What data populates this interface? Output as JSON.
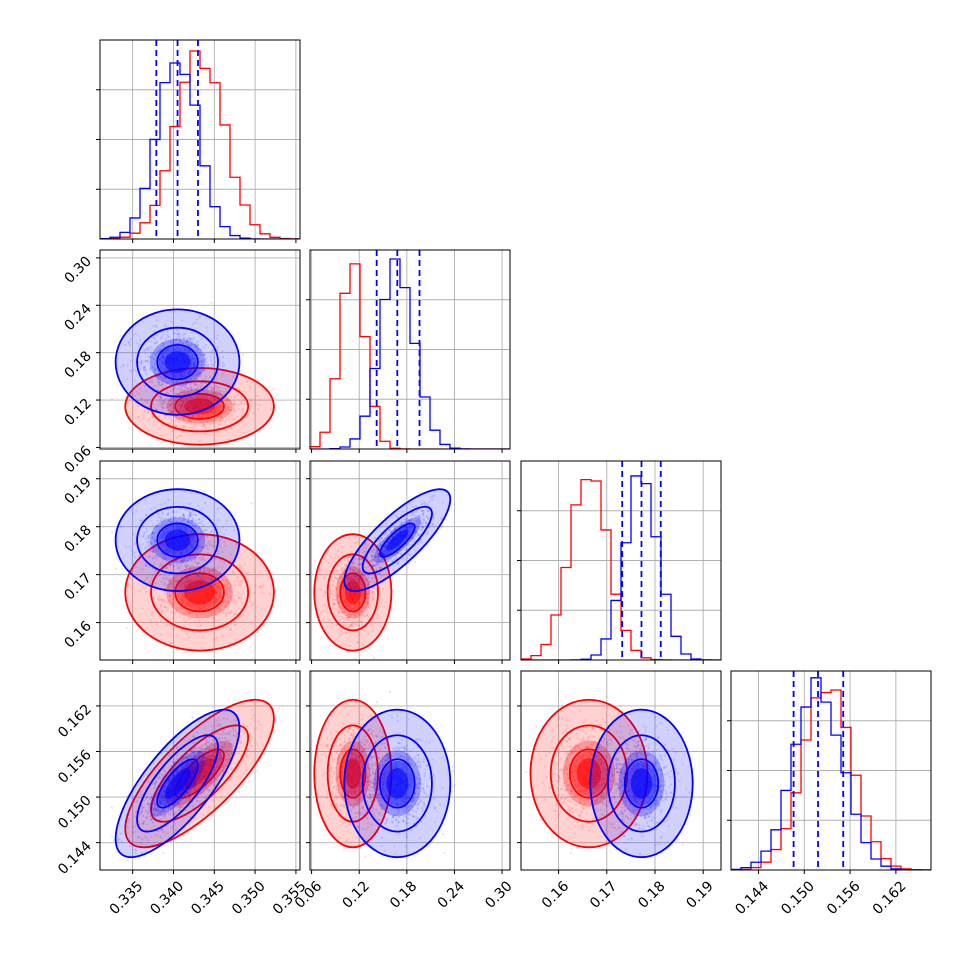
{
  "colors": {
    "series_a": "#ff0000",
    "series_b": "#0000ff",
    "grid": "#b0b0b0"
  },
  "chart_data": {
    "type": "scatter",
    "subtype": "corner plot",
    "title": "",
    "grid": true,
    "legend": "none",
    "parameters": [
      {
        "id": "p1",
        "range": [
          0.331,
          0.3555
        ],
        "ticks": [
          {
            "v": 0.335,
            "t": "0.335"
          },
          {
            "v": 0.34,
            "t": "0.340"
          },
          {
            "v": 0.345,
            "t": "0.345"
          },
          {
            "v": 0.35,
            "t": "0.350"
          },
          {
            "v": 0.355,
            "t": "0.355"
          }
        ],
        "hist_max": 0.16
      },
      {
        "id": "p2",
        "range": [
          0.058,
          0.31
        ],
        "ticks": [
          {
            "v": 0.06,
            "t": "0.06"
          },
          {
            "v": 0.12,
            "t": "0.12"
          },
          {
            "v": 0.18,
            "t": "0.18"
          },
          {
            "v": 0.24,
            "t": "0.24"
          },
          {
            "v": 0.3,
            "t": "0.30"
          }
        ],
        "hist_max": 0.25
      },
      {
        "id": "p3",
        "range": [
          0.1522,
          0.1937
        ],
        "ticks": [
          {
            "v": 0.16,
            "t": "0.16"
          },
          {
            "v": 0.17,
            "t": "0.17"
          },
          {
            "v": 0.18,
            "t": "0.18"
          },
          {
            "v": 0.19,
            "t": "0.19"
          }
        ],
        "hist_max": 0.15
      },
      {
        "id": "p4",
        "range": [
          0.1404,
          0.1666
        ],
        "ticks": [
          {
            "v": 0.144,
            "t": "0.144"
          },
          {
            "v": 0.15,
            "t": "0.150"
          },
          {
            "v": 0.156,
            "t": "0.156"
          },
          {
            "v": 0.162,
            "t": "0.162"
          }
        ],
        "hist_max": 0.16
      }
    ],
    "series": [
      {
        "color": "#ff0000",
        "mean": [
          0.3432,
          0.112,
          0.1663,
          0.1531
        ],
        "std": [
          0.003,
          0.016,
          0.004,
          0.0032
        ],
        "corr": [
          [
            1.0,
            0.0,
            0.0,
            0.75
          ],
          [
            0.0,
            1.0,
            0.0,
            0.0
          ],
          [
            0.0,
            0.0,
            1.0,
            0.0
          ],
          [
            0.75,
            0.0,
            0.0,
            1.0
          ]
        ],
        "quantiles": [
          [],
          [],
          [],
          []
        ]
      },
      {
        "color": "#0000ff",
        "mean": [
          0.3405,
          0.168,
          0.1772,
          0.1518
        ],
        "std": [
          0.0025,
          0.022,
          0.0035,
          0.0032
        ],
        "corr": [
          [
            1.0,
            0.0,
            0.0,
            0.75
          ],
          [
            0.0,
            1.0,
            0.8,
            0.0
          ],
          [
            0.0,
            0.8,
            1.0,
            0.0
          ],
          [
            0.75,
            0.0,
            0.0,
            1.0
          ]
        ],
        "quantiles": [
          [
            0.3379,
            0.3405,
            0.343
          ],
          [
            0.142,
            0.168,
            0.196
          ],
          [
            0.1732,
            0.1772,
            0.1812
          ],
          [
            0.1486,
            0.1518,
            0.1551
          ]
        ]
      }
    ]
  }
}
